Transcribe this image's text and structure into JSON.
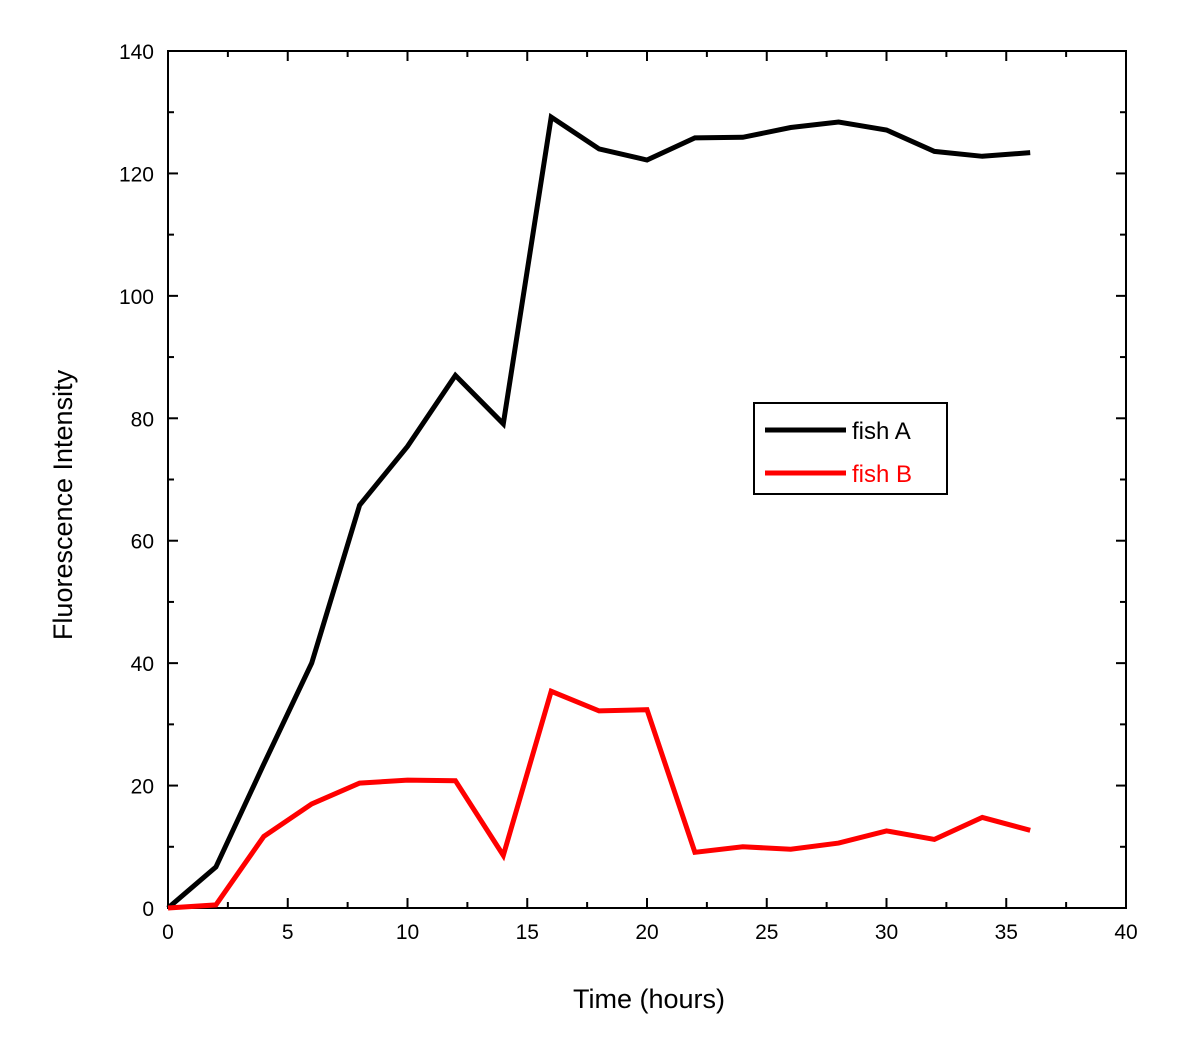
{
  "chart_data": {
    "type": "line",
    "title": "",
    "xlabel": "Time (hours)",
    "ylabel": "Fluorescence Intensity",
    "xlim": [
      0,
      40
    ],
    "ylim": [
      0,
      140
    ],
    "xticks": [
      0,
      5,
      10,
      15,
      20,
      25,
      30,
      35,
      40
    ],
    "yticks": [
      0,
      20,
      40,
      60,
      80,
      100,
      120,
      140
    ],
    "xtick_labels": [
      "0",
      "5",
      "10",
      "15",
      "20",
      "25",
      "30",
      "35",
      "40"
    ],
    "ytick_labels": [
      "0",
      "20",
      "40",
      "60",
      "80",
      "100",
      "120",
      "140"
    ],
    "grid": false,
    "legend_position": "center-right",
    "x": [
      0,
      2,
      4,
      6,
      8,
      10,
      12,
      14,
      16,
      18,
      20,
      22,
      24,
      26,
      28,
      30,
      32,
      34,
      36
    ],
    "series": [
      {
        "name": "fish A",
        "color": "#000000",
        "values": [
          0,
          6.7,
          23.5,
          40,
          65.8,
          75.4,
          87,
          79.1,
          129.2,
          124,
          122.2,
          125.8,
          125.9,
          127.5,
          128.4,
          127.1,
          123.6,
          122.8,
          123.4
        ]
      },
      {
        "name": "fish B",
        "color": "#ff0000",
        "values": [
          0,
          0.5,
          11.7,
          17,
          20.4,
          20.9,
          20.8,
          8.6,
          35.4,
          32.2,
          32.4,
          9.1,
          10,
          9.6,
          10.6,
          12.6,
          11.2,
          14.8,
          12.7
        ]
      }
    ]
  }
}
